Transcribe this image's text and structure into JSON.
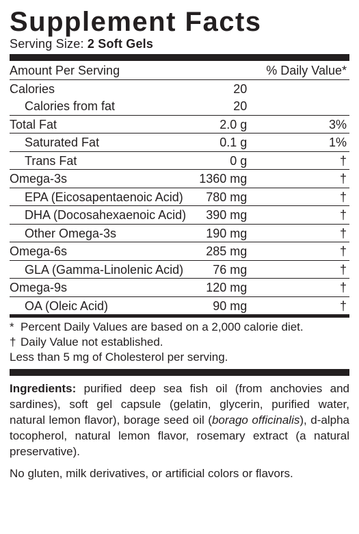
{
  "title": "Supplement Facts",
  "serving_label": "Serving Size:",
  "serving_value": "2 Soft Gels",
  "header": {
    "aps": "Amount Per Serving",
    "dv": "% Daily Value*"
  },
  "rows": [
    {
      "name": "Calories",
      "amt": "20",
      "dv": "",
      "indent": false,
      "sep": true
    },
    {
      "name": "Calories from fat",
      "amt": "20",
      "dv": "",
      "indent": true,
      "sep": false
    },
    {
      "name": "Total Fat",
      "amt": "2.0 g",
      "dv": "3%",
      "indent": false,
      "sep": true
    },
    {
      "name": "Saturated Fat",
      "amt": "0.1 g",
      "dv": "1%",
      "indent": true,
      "sep": true
    },
    {
      "name": "Trans Fat",
      "amt": "0 g",
      "dv": "†",
      "indent": true,
      "sep": true
    },
    {
      "name": "Omega-3s",
      "amt": "1360 mg",
      "dv": "†",
      "indent": false,
      "sep": true
    },
    {
      "name": "EPA (Eicosapentaenoic Acid)",
      "amt": "780 mg",
      "dv": "†",
      "indent": true,
      "sep": true
    },
    {
      "name": "DHA (Docosahexaenoic Acid)",
      "amt": "390 mg",
      "dv": "†",
      "indent": true,
      "sep": true
    },
    {
      "name": "Other Omega-3s",
      "amt": "190 mg",
      "dv": "†",
      "indent": true,
      "sep": true
    },
    {
      "name": "Omega-6s",
      "amt": "285 mg",
      "dv": "†",
      "indent": false,
      "sep": true
    },
    {
      "name": "GLA (Gamma-Linolenic Acid)",
      "amt": "76 mg",
      "dv": "†",
      "indent": true,
      "sep": true
    },
    {
      "name": "Omega-9s",
      "amt": "120 mg",
      "dv": "†",
      "indent": false,
      "sep": true
    },
    {
      "name": "OA (Oleic Acid)",
      "amt": "90 mg",
      "dv": "†",
      "indent": true,
      "sep": true
    }
  ],
  "footnotes": [
    {
      "sym": "*",
      "text": "Percent Daily Values are based on a 2,000 calorie diet."
    },
    {
      "sym": "†",
      "text": "Daily Value not established."
    }
  ],
  "footnote_extra": "Less than 5 mg of Cholesterol per serving.",
  "ingredients_label": "Ingredients:",
  "ingredients_a": " purified deep sea fish oil (from anchovies and sardines), soft gel capsule (gelatin, glycerin, purified water, natural lemon flavor), borage seed oil (",
  "ingredients_ital": "borago officinalis",
  "ingredients_b": "), d-alpha tocopherol, natural lemon flavor, rosemary extract (a natural preservative).",
  "no_gluten": "No gluten, milk derivatives, or artificial colors or flavors.",
  "colors": {
    "ink": "#231f20",
    "bg": "#ffffff"
  }
}
